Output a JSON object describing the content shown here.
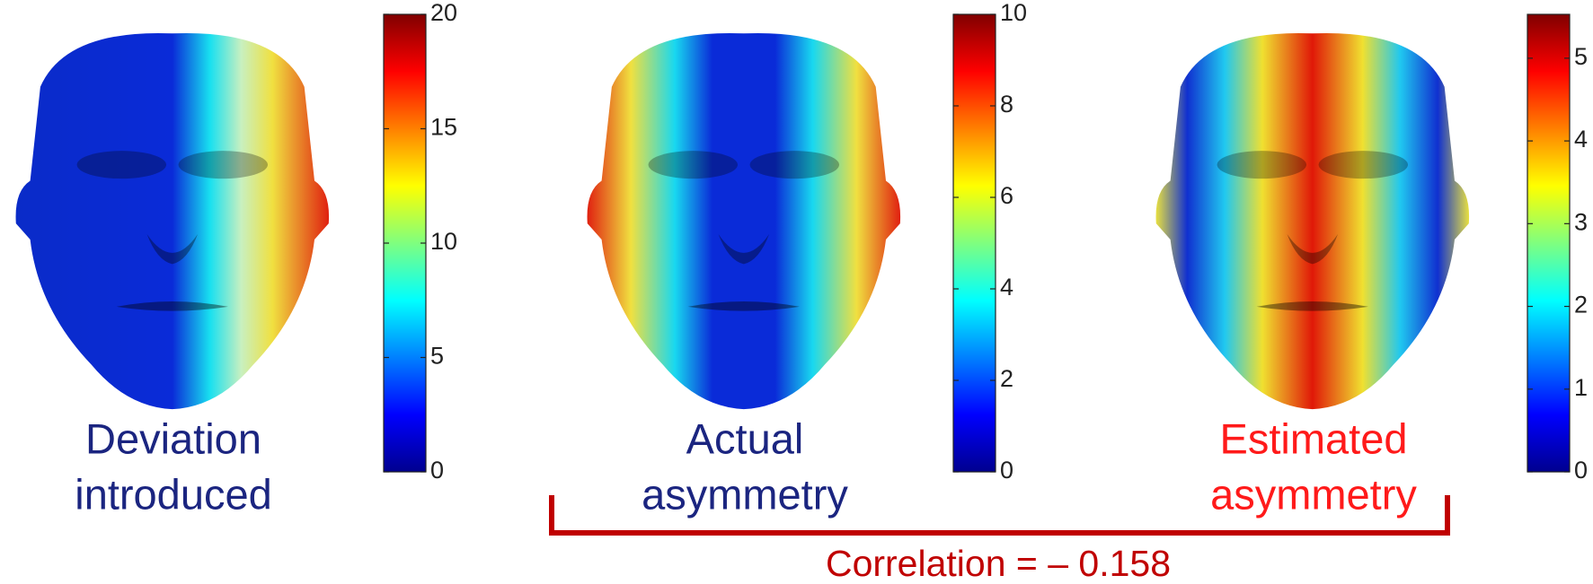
{
  "panels": [
    {
      "caption": [
        "Deviation",
        "introduced"
      ],
      "caption_color": "#1b2580",
      "colorbar": {
        "lim": [
          0,
          20
        ],
        "ticks": [
          0,
          5,
          10,
          15,
          20
        ]
      }
    },
    {
      "caption": [
        "Actual",
        "asymmetry"
      ],
      "caption_color": "#1b2580",
      "colorbar": {
        "lim": [
          0,
          10
        ],
        "ticks": [
          0,
          2,
          4,
          6,
          8,
          10
        ]
      }
    },
    {
      "caption": [
        "Estimated",
        "asymmetry"
      ],
      "caption_color": "#ff1a1a",
      "colorbar": {
        "lim": [
          0,
          5.53
        ],
        "ticks": [
          0,
          1,
          2,
          3,
          4,
          5
        ]
      }
    }
  ],
  "correlation": "Correlation = – 0.158"
}
